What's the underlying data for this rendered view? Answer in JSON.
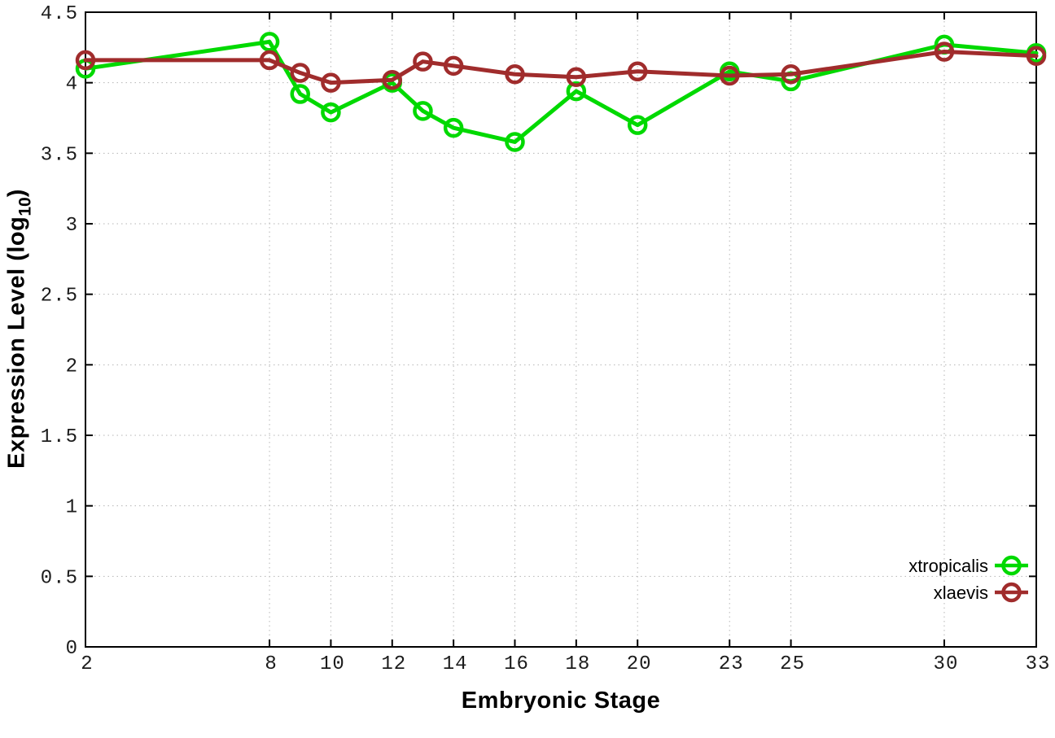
{
  "chart_data": {
    "type": "line",
    "title": "",
    "xlabel": "Embryonic Stage",
    "ylabel_parts": {
      "main": "Expression Level (log",
      "sub": "10",
      "end": ")"
    },
    "x": [
      2,
      8,
      9,
      10,
      12,
      13,
      14,
      16,
      18,
      20,
      23,
      25,
      30,
      33
    ],
    "series": [
      {
        "name": "xtropicalis",
        "color": "#00d900",
        "values": [
          4.1,
          4.29,
          3.92,
          3.79,
          4.0,
          3.8,
          3.68,
          3.58,
          3.94,
          3.7,
          4.08,
          4.01,
          4.27,
          4.21
        ]
      },
      {
        "name": "xlaevis",
        "color": "#a02c2c",
        "values": [
          4.16,
          4.16,
          4.07,
          4.0,
          4.02,
          4.15,
          4.12,
          4.06,
          4.04,
          4.08,
          4.05,
          4.06,
          4.22,
          4.19
        ]
      }
    ],
    "xlim": [
      2,
      33
    ],
    "ylim": [
      0,
      4.5
    ],
    "xticks": [
      2,
      8,
      10,
      12,
      14,
      16,
      18,
      20,
      23,
      25,
      30,
      33
    ],
    "yticks": [
      0,
      0.5,
      1,
      1.5,
      2,
      2.5,
      3,
      3.5,
      4,
      4.5
    ],
    "grid": true,
    "legend_position": "bottom-right",
    "colors": {
      "background": "#ffffff",
      "border": "#000000",
      "grid": "#b5b5b5",
      "tick_label": "#1c1c1c"
    }
  }
}
